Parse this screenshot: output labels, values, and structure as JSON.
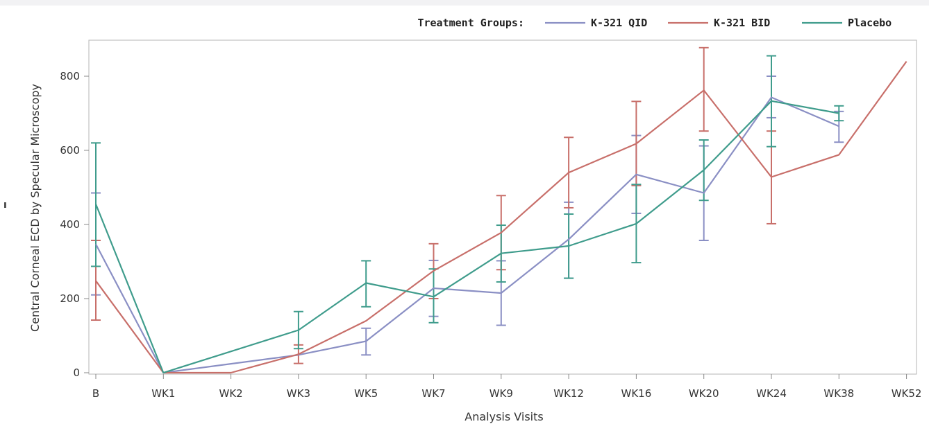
{
  "chart_data": {
    "type": "line",
    "title": "",
    "xlabel": "Analysis Visits",
    "ylabel": "Central Corneal ECD by Specular Microscopy",
    "categories": [
      "B",
      "WK1",
      "WK2",
      "WK3",
      "WK5",
      "WK7",
      "WK9",
      "WK12",
      "WK16",
      "WK20",
      "WK24",
      "WK38",
      "WK52"
    ],
    "yticks": [
      0,
      200,
      400,
      600,
      800
    ],
    "ylim": [
      0,
      880
    ],
    "grid": false,
    "legend": {
      "title": "Treatment Groups:",
      "placement": "top-right"
    },
    "series": [
      {
        "name": "K-321 QID",
        "color": "#8a8fc4",
        "values": [
          347,
          0,
          null,
          48,
          85,
          228,
          215,
          360,
          535,
          485,
          743,
          665,
          null
        ],
        "lower": [
          210,
          null,
          null,
          null,
          48,
          152,
          128,
          255,
          430,
          357,
          688,
          622,
          null
        ],
        "upper": [
          485,
          null,
          null,
          null,
          120,
          303,
          302,
          460,
          640,
          612,
          800,
          705,
          null
        ]
      },
      {
        "name": "K-321 BID",
        "color": "#c86f6a",
        "values": [
          248,
          0,
          0,
          50,
          140,
          275,
          378,
          540,
          618,
          762,
          528,
          588,
          840
        ],
        "lower": [
          142,
          null,
          null,
          25,
          null,
          200,
          278,
          445,
          505,
          652,
          402,
          null,
          null
        ],
        "upper": [
          357,
          null,
          null,
          75,
          null,
          348,
          478,
          635,
          732,
          877,
          652,
          null,
          null
        ]
      },
      {
        "name": "Placebo",
        "color": "#3f9c8c",
        "values": [
          455,
          0,
          null,
          115,
          242,
          205,
          322,
          342,
          402,
          547,
          733,
          700,
          null
        ],
        "lower": [
          287,
          null,
          null,
          65,
          178,
          135,
          245,
          255,
          297,
          465,
          610,
          680,
          null
        ],
        "upper": [
          620,
          null,
          null,
          165,
          302,
          280,
          398,
          428,
          508,
          628,
          855,
          720,
          null
        ]
      }
    ]
  }
}
